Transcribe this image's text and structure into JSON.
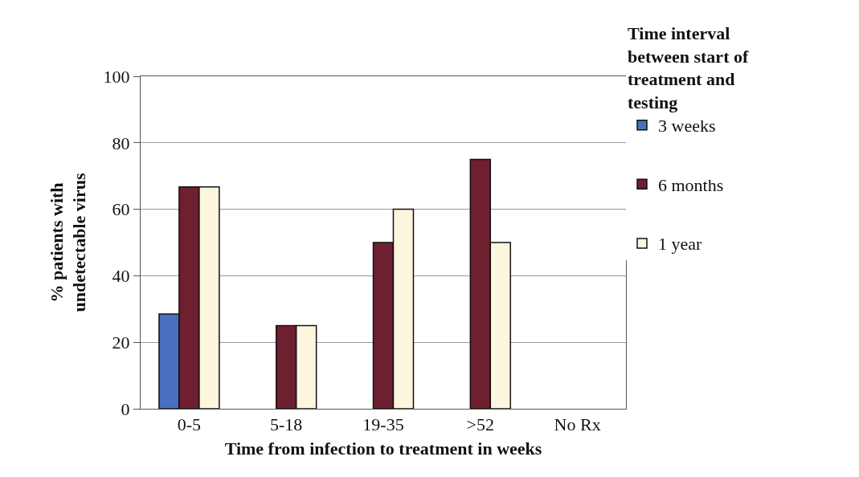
{
  "chart_data": {
    "type": "bar",
    "xlabel": "Time from infection to treatment in weeks",
    "ylabel": "% patients with undetectable virus",
    "legend_title": "Time interval between start of treatment and testing",
    "categories": [
      "0-5",
      "5-18",
      "19-35",
      ">52",
      "No Rx"
    ],
    "series": [
      {
        "name": "3 weeks",
        "color": "#4a6fc0",
        "values": [
          28.5,
          null,
          null,
          null,
          null
        ]
      },
      {
        "name": "6 months",
        "color": "#6e1f30",
        "values": [
          66.7,
          25,
          50,
          75,
          null
        ]
      },
      {
        "name": "1 year",
        "color": "#fdf6df",
        "values": [
          66.7,
          25,
          60,
          50,
          null
        ]
      }
    ],
    "ylim": [
      0,
      100
    ],
    "yticks": [
      0,
      20,
      40,
      60,
      80,
      100
    ],
    "grid": "y",
    "legend": "right"
  }
}
